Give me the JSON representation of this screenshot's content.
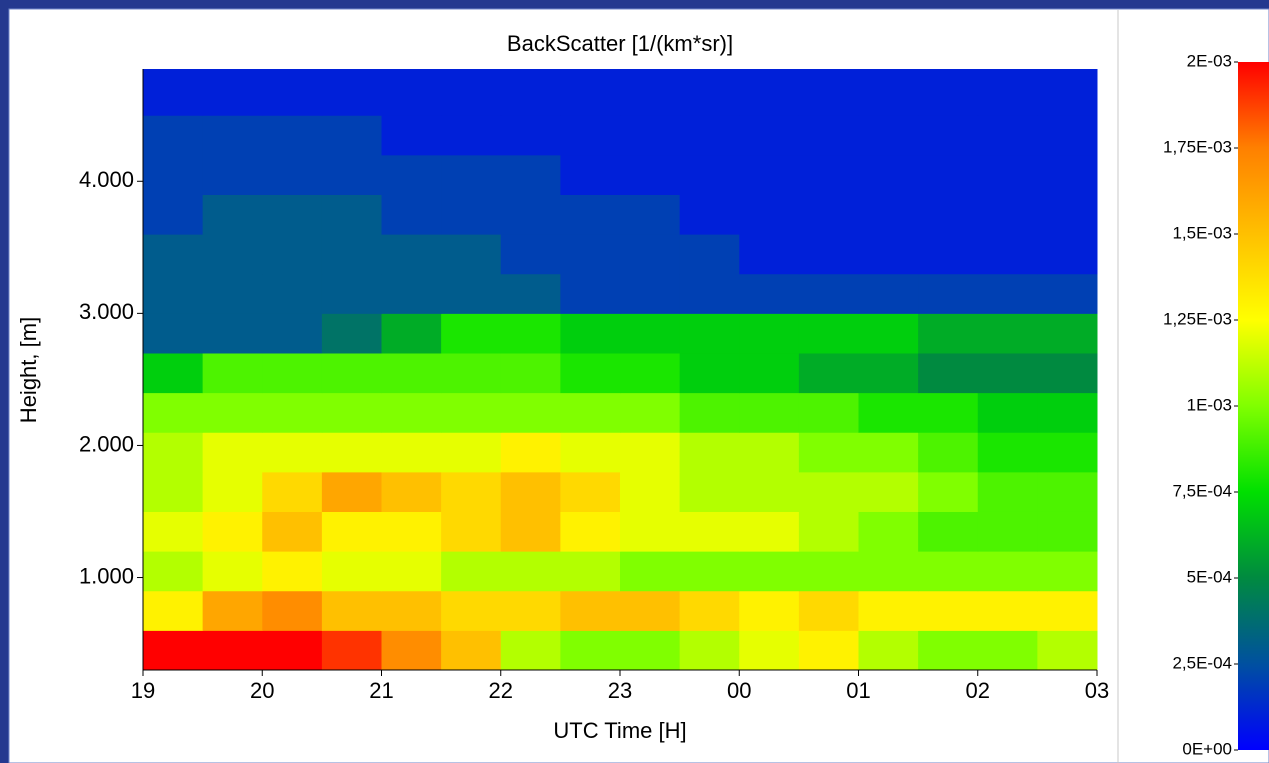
{
  "chart_data": {
    "type": "heatmap",
    "title": "BackScatter [1/(km*sr)]",
    "x_label": "UTC Time [H]",
    "y_label": "Height, [m]",
    "xlim": [
      19,
      27
    ],
    "xticks": [
      19,
      20,
      21,
      22,
      23,
      {
        "value": 24,
        "label": "00"
      },
      {
        "value": 25,
        "label": "01"
      },
      {
        "value": 26,
        "label": "02"
      },
      {
        "value": 27,
        "label": "03"
      }
    ],
    "ylim": [
      300,
      4850
    ],
    "yticks": [
      {
        "value": 1000,
        "label": "1.000"
      },
      {
        "value": 2000,
        "label": "2.000"
      },
      {
        "value": 3000,
        "label": "3.000"
      },
      {
        "value": 4000,
        "label": "4.000"
      }
    ],
    "x": [
      19,
      19.5,
      20,
      20.5,
      21,
      21.5,
      22,
      22.5,
      23,
      23.5,
      24,
      24.5,
      25,
      25.5,
      26,
      26.5
    ],
    "y": [
      300,
      600,
      900,
      1200,
      1500,
      1800,
      2100,
      2400,
      2700,
      3000,
      3300,
      3600,
      3900,
      4200,
      4500
    ],
    "z": [
      [
        0.002,
        0.002,
        0.002,
        0.0019,
        0.0017,
        0.0015,
        0.0011,
        0.001,
        0.001,
        0.0011,
        0.0012,
        0.0013,
        0.0011,
        0.001,
        0.001,
        0.0011
      ],
      [
        0.0013,
        0.0016,
        0.0017,
        0.0015,
        0.0015,
        0.0014,
        0.0014,
        0.0015,
        0.0015,
        0.0014,
        0.0013,
        0.0014,
        0.0013,
        0.0013,
        0.0013,
        0.0013
      ],
      [
        0.0011,
        0.0012,
        0.0013,
        0.0012,
        0.0012,
        0.0011,
        0.0011,
        0.0011,
        0.001,
        0.001,
        0.001,
        0.001,
        0.001,
        0.001,
        0.001,
        0.001
      ],
      [
        0.0012,
        0.0013,
        0.0015,
        0.0013,
        0.0013,
        0.0014,
        0.0015,
        0.0013,
        0.0012,
        0.0012,
        0.0012,
        0.0011,
        0.001,
        0.0009,
        0.0009,
        0.0009
      ],
      [
        0.0011,
        0.0012,
        0.0014,
        0.0016,
        0.0015,
        0.0014,
        0.0015,
        0.0014,
        0.0012,
        0.0011,
        0.0011,
        0.0011,
        0.0011,
        0.001,
        0.0009,
        0.0009
      ],
      [
        0.0011,
        0.0012,
        0.0012,
        0.0012,
        0.0012,
        0.0012,
        0.0013,
        0.0012,
        0.0012,
        0.0011,
        0.0011,
        0.001,
        0.001,
        0.0009,
        0.0008,
        0.0008
      ],
      [
        0.001,
        0.001,
        0.001,
        0.001,
        0.001,
        0.001,
        0.001,
        0.001,
        0.001,
        0.0009,
        0.0009,
        0.0009,
        0.0008,
        0.0008,
        0.0007,
        0.0007
      ],
      [
        0.0007,
        0.0009,
        0.0009,
        0.0009,
        0.0009,
        0.0009,
        0.0009,
        0.0008,
        0.0008,
        0.0007,
        0.0007,
        0.0006,
        0.0006,
        0.0005,
        0.0005,
        0.0005
      ],
      [
        0.0003,
        0.0003,
        0.0003,
        0.0004,
        0.0006,
        0.0008,
        0.0008,
        0.0007,
        0.0007,
        0.0007,
        0.0007,
        0.0007,
        0.0007,
        0.0006,
        0.0006,
        0.0006
      ],
      [
        0.0003,
        0.0003,
        0.0003,
        0.0003,
        0.0003,
        0.0003,
        0.0003,
        0.0002,
        0.0002,
        0.0002,
        0.0002,
        0.0002,
        0.0002,
        0.0002,
        0.0002,
        0.0002
      ],
      [
        0.0003,
        0.0003,
        0.0003,
        0.0003,
        0.0003,
        0.0003,
        0.0002,
        0.0002,
        0.0002,
        0.0002,
        0.0001,
        0.0001,
        0.0001,
        0.0001,
        0.0001,
        0.0001
      ],
      [
        0.0002,
        0.0003,
        0.0003,
        0.0003,
        0.0002,
        0.0002,
        0.0002,
        0.0002,
        0.0002,
        0.0001,
        0.0001,
        0.0001,
        0.0001,
        0.0001,
        0.0001,
        0.0001
      ],
      [
        0.0002,
        0.0002,
        0.0002,
        0.0002,
        0.0002,
        0.0002,
        0.0002,
        0.0001,
        0.0001,
        0.0001,
        0.0001,
        0.0001,
        0.0001,
        0.0001,
        0.0001,
        0.0001
      ],
      [
        0.0002,
        0.0002,
        0.0002,
        0.0002,
        0.0001,
        0.0001,
        0.0001,
        0.0001,
        0.0001,
        0.0001,
        0.0001,
        0.0001,
        0.0001,
        0.0001,
        0.0001,
        0.0001
      ],
      [
        0.0001,
        0.0001,
        0.0001,
        0.0001,
        0.0001,
        0.0001,
        0.0001,
        0.0001,
        0.0001,
        0.0001,
        0.0001,
        0.0001,
        0.0001,
        0.0001,
        0.0001,
        0.0001
      ]
    ],
    "colorbar": {
      "lim": [
        0,
        0.002
      ],
      "colors": [
        "#0000ff",
        "#0050a0",
        "#008a40",
        "#00e000",
        "#80ff00",
        "#ffff00",
        "#ffc000",
        "#ff8000",
        "#ff0000"
      ],
      "ticks": [
        {
          "value": 0,
          "label": "0E+00"
        },
        {
          "value": 0.00025,
          "label": "2,5E-04"
        },
        {
          "value": 0.0005,
          "label": "5E-04"
        },
        {
          "value": 0.00075,
          "label": "7,5E-04"
        },
        {
          "value": 0.001,
          "label": "1E-03"
        },
        {
          "value": 0.00125,
          "label": "1,25E-03"
        },
        {
          "value": 0.0015,
          "label": "1,5E-03"
        },
        {
          "value": 0.00175,
          "label": "1,75E-03"
        },
        {
          "value": 0.002,
          "label": "2E-03"
        }
      ]
    }
  }
}
